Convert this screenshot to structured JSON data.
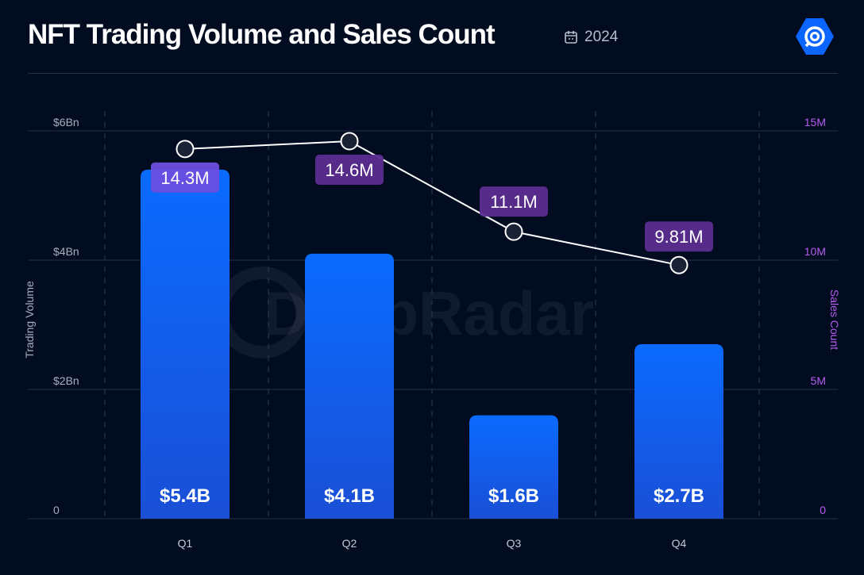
{
  "header": {
    "title": "NFT Trading Volume and Sales Count",
    "date": "2024",
    "date_icon": "calendar-icon",
    "logo_icon": "dappradar-logo-icon"
  },
  "watermark": "DappRadar",
  "colors": {
    "background": "#020c21",
    "bar": "#0a66ff",
    "line": "#ffffff",
    "label_bg": "#5b2d90",
    "label_bg_highlight": "#6a4fe0",
    "right_axis": "#b65cf0"
  },
  "chart_data": {
    "type": "bar+line",
    "categories": [
      "Q1",
      "Q2",
      "Q3",
      "Q4"
    ],
    "series": [
      {
        "name": "Trading Volume",
        "axis": "left",
        "type": "bar",
        "values": [
          5.4,
          4.1,
          1.6,
          2.7
        ],
        "labels": [
          "$5.4B",
          "$4.1B",
          "$1.6B",
          "$2.7B"
        ]
      },
      {
        "name": "Sales Count",
        "axis": "right",
        "type": "line",
        "values": [
          14.3,
          14.6,
          11.1,
          9.81
        ],
        "labels": [
          "14.3M",
          "14.6M",
          "11.1M",
          "9.81M"
        ]
      }
    ],
    "ylabel": "Trading Volume",
    "y2label": "Sales Count",
    "ylim": [
      0,
      6
    ],
    "y2lim": [
      0,
      15
    ],
    "yticks": [
      "0",
      "$2Bn",
      "$4Bn",
      "$6Bn"
    ],
    "y2ticks": [
      "0",
      "5M",
      "10M",
      "15M"
    ],
    "grid": true
  }
}
